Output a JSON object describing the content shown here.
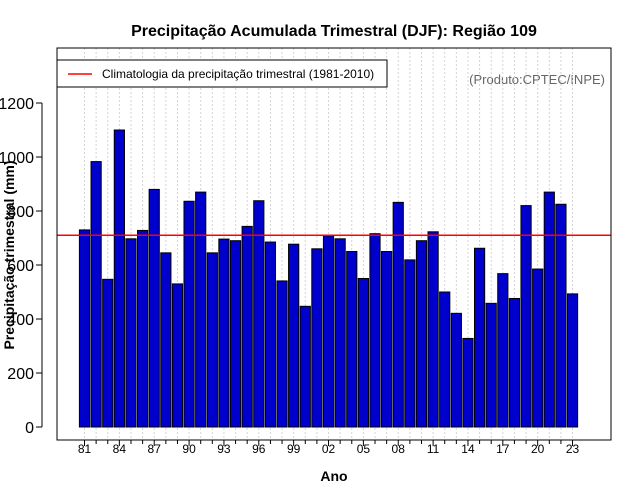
{
  "colors": {
    "bar_fill": "#0000CD",
    "bar_stroke": "#000000",
    "climatology_line": "#FF0000",
    "grid": "#D3D3D3",
    "credit": "#666666"
  },
  "chart_data": {
    "type": "bar",
    "title": "Precipitação Acumulada Trimestral (DJF): Região 109",
    "xlabel": "Ano",
    "ylabel": "Precipitação trimestral (mm)",
    "ylim": [
      0,
      1300
    ],
    "yticks": [
      0,
      200,
      400,
      600,
      800,
      1000,
      1200
    ],
    "categories": [
      "1981",
      "1982",
      "1983",
      "1984",
      "1985",
      "1986",
      "1987",
      "1988",
      "1989",
      "1990",
      "1991",
      "1992",
      "1993",
      "1994",
      "1995",
      "1996",
      "1997",
      "1998",
      "1999",
      "2000",
      "2001",
      "2002",
      "2003",
      "2004",
      "2005",
      "2006",
      "2007",
      "2008",
      "2009",
      "2010",
      "2011",
      "2012",
      "2013",
      "2014",
      "2015",
      "2016",
      "2017",
      "2018",
      "2019",
      "2020",
      "2021",
      "2022",
      "2023"
    ],
    "values": [
      730,
      983,
      547,
      1100,
      697,
      728,
      880,
      645,
      530,
      836,
      870,
      645,
      696,
      690,
      743,
      838,
      685,
      541,
      677,
      447,
      660,
      708,
      697,
      650,
      550,
      716,
      650,
      832,
      619,
      690,
      723,
      500,
      421,
      328,
      662,
      458,
      568,
      476,
      820,
      585,
      870,
      825,
      493
    ],
    "xtick_labels": [
      "81",
      "84",
      "87",
      "90",
      "93",
      "96",
      "99",
      "02",
      "05",
      "08",
      "11",
      "14",
      "17",
      "20",
      "23"
    ],
    "climatology": 710,
    "legend": {
      "label": "Climatologia da precipitação trimestral (1981-2010)",
      "position": "top-left"
    },
    "credit": "(Produto:CPTEC/INPE)",
    "grid": true
  }
}
